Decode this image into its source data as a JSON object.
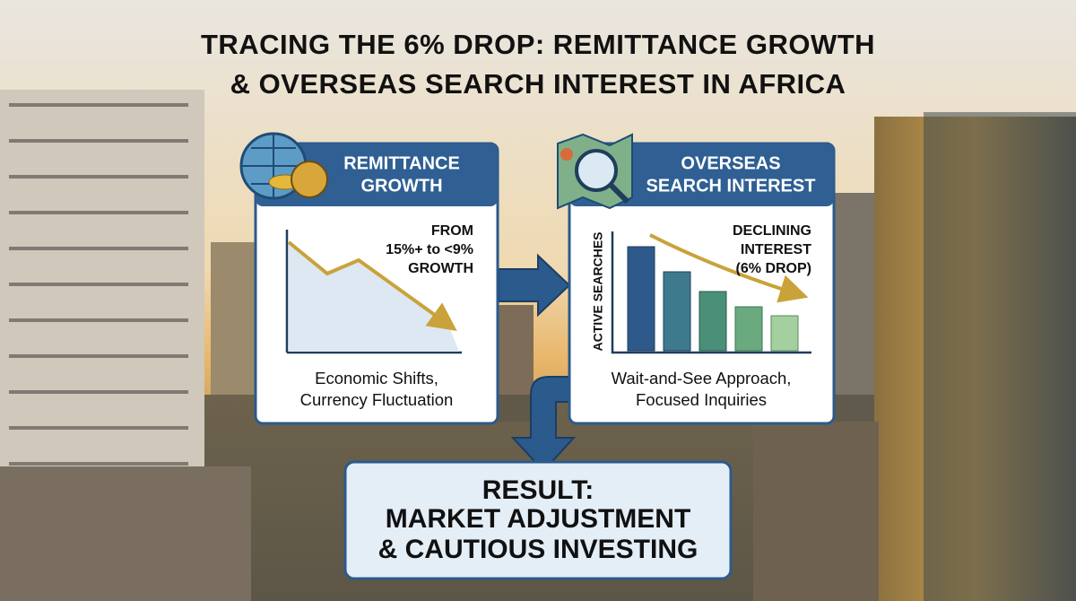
{
  "header": {
    "title_lines": [
      "TRACING THE 6% DROP: REMITTANCE GROWTH",
      "& OVERSEAS SEARCH INTEREST IN AFRICA"
    ]
  },
  "panels": [
    {
      "title_lines": [
        "REMITTANCE",
        "GROWTH"
      ],
      "note_lines": [
        "FROM",
        "15%+ to <9%",
        "GROWTH"
      ],
      "caption_lines": [
        "Economic Shifts,",
        "Currency Fluctuation"
      ]
    },
    {
      "title_lines": [
        "OVERSEAS",
        "SEARCH INTEREST"
      ],
      "axis_label": "ACTIVE SEARCHES",
      "note_lines": [
        "DECLINING",
        "INTEREST",
        "(6% DROP)"
      ],
      "caption_lines": [
        "Wait-and-See Approach,",
        "Focused Inquiries"
      ]
    }
  ],
  "result": {
    "lines": [
      "RESULT:",
      "MARKET ADJUSTMENT",
      "& CAUTIOUS INVESTING"
    ]
  }
}
